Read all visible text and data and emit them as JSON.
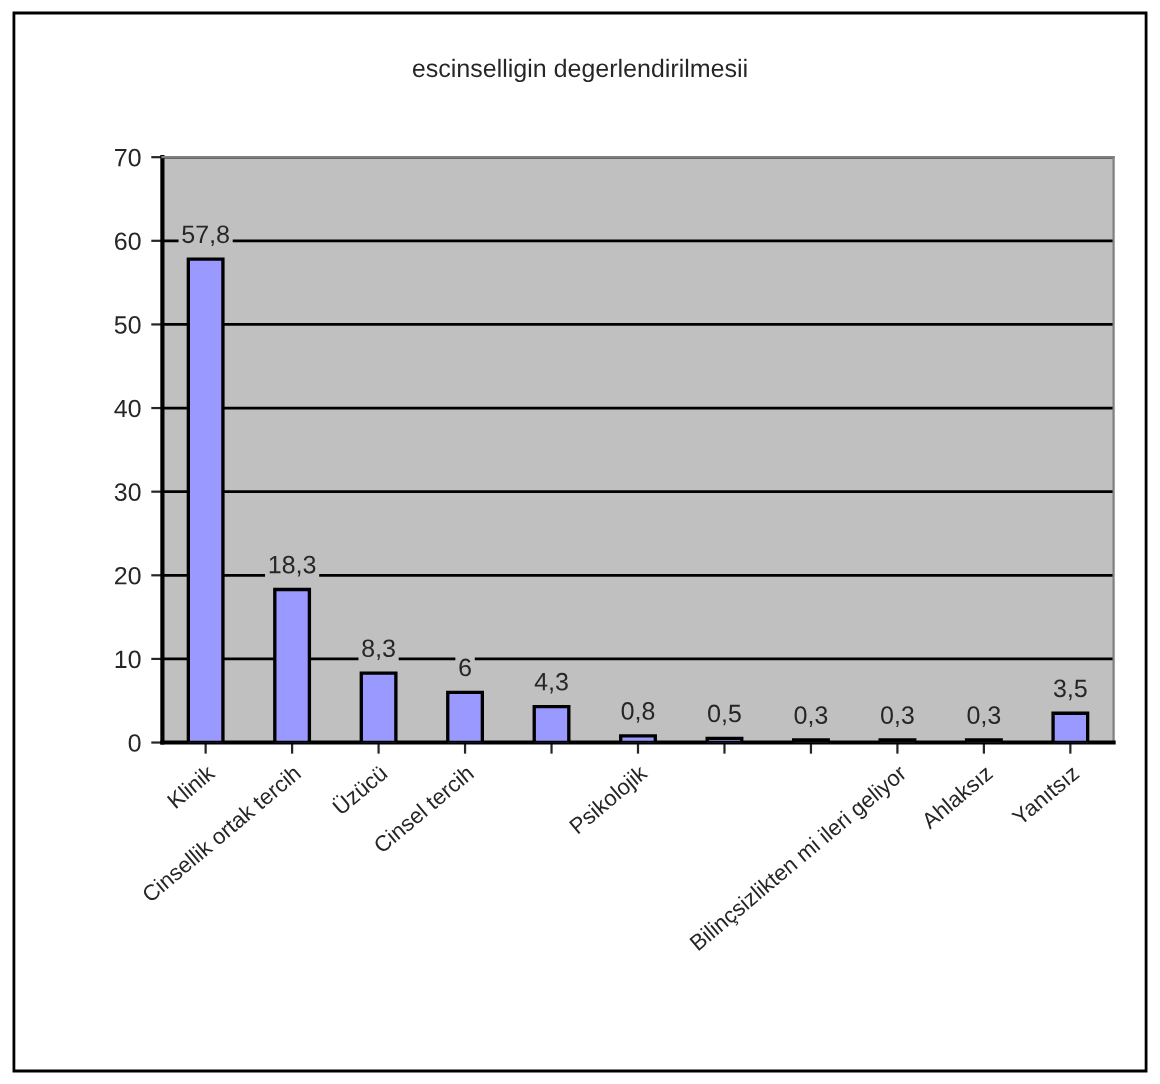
{
  "chart_data": {
    "type": "bar",
    "title": "escinselligin degerlendirilmesii",
    "categories": [
      "Klinik",
      "Cinsellik ortak tercih",
      "Üzücü",
      "Cinsel tercih",
      null,
      "Psikolojik",
      null,
      null,
      "Bilinçsizlikten mi ileri geliyor",
      "Ahlaksız",
      "Yanıtsız"
    ],
    "values": [
      57.8,
      18.3,
      8.3,
      6,
      4.3,
      0.8,
      0.5,
      0.3,
      0.3,
      0.3,
      3.5
    ],
    "value_labels": [
      "57,8",
      "18,3",
      "8,3",
      "6",
      "4,3",
      "0,8",
      "0,5",
      "0,3",
      "0,3",
      "0,3",
      "3,5"
    ],
    "color": "#9999ff",
    "ylim": [
      0,
      70
    ],
    "yticks": [
      0,
      10,
      20,
      30,
      40,
      50,
      60,
      70
    ],
    "grid": "y",
    "legend": false
  }
}
